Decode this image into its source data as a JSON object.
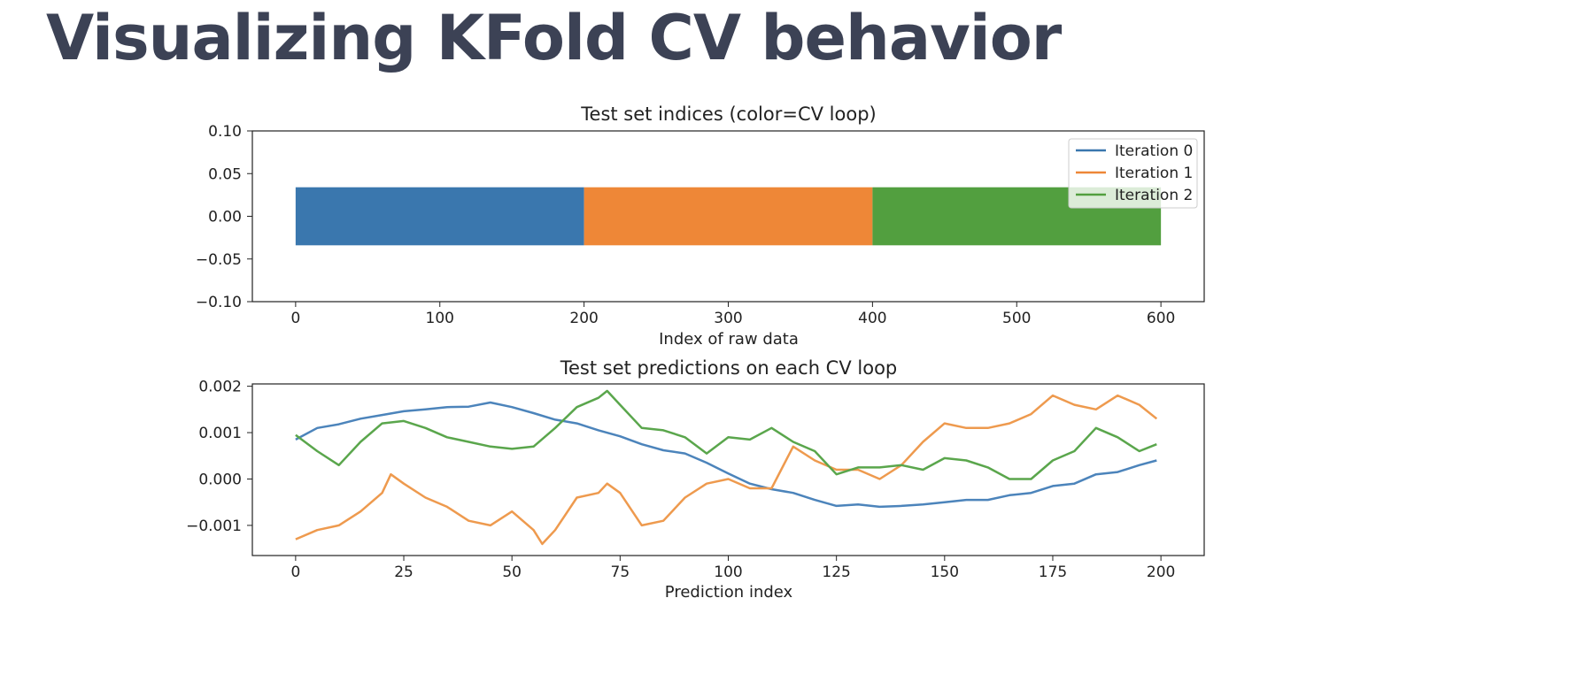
{
  "page_title": "Visualizing KFold CV behavior",
  "chart_data": [
    {
      "type": "bar",
      "orientation": "horizontal",
      "title": "Test set indices (color=CV loop)",
      "xlabel": "Index of raw data",
      "ylabel": "",
      "xlim": [
        -30,
        630
      ],
      "ylim": [
        -0.1,
        0.1
      ],
      "x_ticks": [
        0,
        100,
        200,
        300,
        400,
        500,
        600
      ],
      "y_ticks": [
        0.1,
        0.05,
        0.0,
        -0.05,
        -0.1
      ],
      "x_tick_labels": [
        "0",
        "100",
        "200",
        "300",
        "400",
        "500",
        "600"
      ],
      "y_tick_labels": [
        "0.10",
        "0.05",
        "0.00",
        "−0.05",
        "−0.10"
      ],
      "bar_height": [
        -0.034,
        0.034
      ],
      "segments": [
        {
          "name": "Iteration 0",
          "start": 0,
          "end": 200,
          "color": "#3a77ae"
        },
        {
          "name": "Iteration 1",
          "start": 200,
          "end": 400,
          "color": "#ee8737"
        },
        {
          "name": "Iteration 2",
          "start": 400,
          "end": 600,
          "color": "#529f3f"
        }
      ],
      "legend": {
        "position": "top-right",
        "entries": [
          "Iteration 0",
          "Iteration 1",
          "Iteration 2"
        ]
      },
      "grid": false
    },
    {
      "type": "line",
      "title": "Test set predictions on each CV loop",
      "xlabel": "Prediction index",
      "ylabel": "",
      "xlim": [
        -10,
        210
      ],
      "ylim": [
        -0.00165,
        0.00205
      ],
      "x_ticks": [
        0,
        25,
        50,
        75,
        100,
        125,
        150,
        175,
        200
      ],
      "y_ticks": [
        0.002,
        0.001,
        0.0,
        -0.001
      ],
      "x_tick_labels": [
        "0",
        "25",
        "50",
        "75",
        "100",
        "125",
        "150",
        "175",
        "200"
      ],
      "y_tick_labels": [
        "0.002",
        "0.001",
        "0.000",
        "−0.001"
      ],
      "grid": false,
      "series": [
        {
          "name": "Iteration 0",
          "color": "#4c84bb",
          "points": [
            [
              0,
              0.00085
            ],
            [
              5,
              0.0011
            ],
            [
              10,
              0.00118
            ],
            [
              15,
              0.0013
            ],
            [
              20,
              0.00138
            ],
            [
              25,
              0.00146
            ],
            [
              30,
              0.0015
            ],
            [
              35,
              0.00155
            ],
            [
              40,
              0.00156
            ],
            [
              45,
              0.00165
            ],
            [
              50,
              0.00155
            ],
            [
              55,
              0.00142
            ],
            [
              60,
              0.00128
            ],
            [
              65,
              0.0012
            ],
            [
              70,
              0.00105
            ],
            [
              75,
              0.00092
            ],
            [
              80,
              0.00075
            ],
            [
              85,
              0.00062
            ],
            [
              90,
              0.00055
            ],
            [
              95,
              0.00035
            ],
            [
              100,
              0.00012
            ],
            [
              105,
              -0.0001
            ],
            [
              110,
              -0.00022
            ],
            [
              115,
              -0.0003
            ],
            [
              120,
              -0.00045
            ],
            [
              125,
              -0.00058
            ],
            [
              130,
              -0.00055
            ],
            [
              135,
              -0.0006
            ],
            [
              140,
              -0.00058
            ],
            [
              145,
              -0.00055
            ],
            [
              150,
              -0.0005
            ],
            [
              155,
              -0.00045
            ],
            [
              160,
              -0.00045
            ],
            [
              165,
              -0.00035
            ],
            [
              170,
              -0.0003
            ],
            [
              175,
              -0.00015
            ],
            [
              180,
              -0.0001
            ],
            [
              185,
              0.0001
            ],
            [
              190,
              0.00015
            ],
            [
              195,
              0.0003
            ],
            [
              199,
              0.0004
            ]
          ]
        },
        {
          "name": "Iteration 1",
          "color": "#ee9a4e",
          "points": [
            [
              0,
              -0.0013
            ],
            [
              5,
              -0.0011
            ],
            [
              10,
              -0.001
            ],
            [
              15,
              -0.0007
            ],
            [
              20,
              -0.0003
            ],
            [
              22,
              0.0001
            ],
            [
              25,
              -0.0001
            ],
            [
              30,
              -0.0004
            ],
            [
              35,
              -0.0006
            ],
            [
              40,
              -0.0009
            ],
            [
              45,
              -0.001
            ],
            [
              50,
              -0.0007
            ],
            [
              55,
              -0.0011
            ],
            [
              57,
              -0.0014
            ],
            [
              60,
              -0.0011
            ],
            [
              65,
              -0.0004
            ],
            [
              70,
              -0.0003
            ],
            [
              72,
              -0.0001
            ],
            [
              75,
              -0.0003
            ],
            [
              80,
              -0.001
            ],
            [
              85,
              -0.0009
            ],
            [
              90,
              -0.0004
            ],
            [
              95,
              -0.0001
            ],
            [
              100,
              0.0
            ],
            [
              105,
              -0.0002
            ],
            [
              110,
              -0.0002
            ],
            [
              115,
              0.0007
            ],
            [
              120,
              0.0004
            ],
            [
              125,
              0.0002
            ],
            [
              130,
              0.0002
            ],
            [
              135,
              0.0
            ],
            [
              140,
              0.0003
            ],
            [
              145,
              0.0008
            ],
            [
              150,
              0.0012
            ],
            [
              155,
              0.0011
            ],
            [
              160,
              0.0011
            ],
            [
              165,
              0.0012
            ],
            [
              170,
              0.0014
            ],
            [
              175,
              0.0018
            ],
            [
              180,
              0.0016
            ],
            [
              185,
              0.0015
            ],
            [
              190,
              0.0018
            ],
            [
              195,
              0.0016
            ],
            [
              199,
              0.0013
            ]
          ]
        },
        {
          "name": "Iteration 2",
          "color": "#5aa64c",
          "points": [
            [
              0,
              0.00095
            ],
            [
              5,
              0.0006
            ],
            [
              10,
              0.0003
            ],
            [
              15,
              0.0008
            ],
            [
              20,
              0.0012
            ],
            [
              25,
              0.00125
            ],
            [
              30,
              0.0011
            ],
            [
              35,
              0.0009
            ],
            [
              40,
              0.0008
            ],
            [
              45,
              0.0007
            ],
            [
              50,
              0.00065
            ],
            [
              55,
              0.0007
            ],
            [
              60,
              0.0011
            ],
            [
              65,
              0.00155
            ],
            [
              70,
              0.00175
            ],
            [
              72,
              0.0019
            ],
            [
              75,
              0.0016
            ],
            [
              80,
              0.0011
            ],
            [
              85,
              0.00105
            ],
            [
              90,
              0.0009
            ],
            [
              95,
              0.00055
            ],
            [
              100,
              0.0009
            ],
            [
              105,
              0.00085
            ],
            [
              110,
              0.0011
            ],
            [
              115,
              0.0008
            ],
            [
              120,
              0.0006
            ],
            [
              125,
              0.0001
            ],
            [
              130,
              0.00025
            ],
            [
              135,
              0.00025
            ],
            [
              140,
              0.0003
            ],
            [
              145,
              0.0002
            ],
            [
              150,
              0.00045
            ],
            [
              155,
              0.0004
            ],
            [
              160,
              0.00025
            ],
            [
              165,
              0.0
            ],
            [
              170,
              0.0
            ],
            [
              175,
              0.0004
            ],
            [
              180,
              0.0006
            ],
            [
              185,
              0.0011
            ],
            [
              190,
              0.0009
            ],
            [
              195,
              0.0006
            ],
            [
              199,
              0.00075
            ]
          ]
        }
      ]
    }
  ]
}
